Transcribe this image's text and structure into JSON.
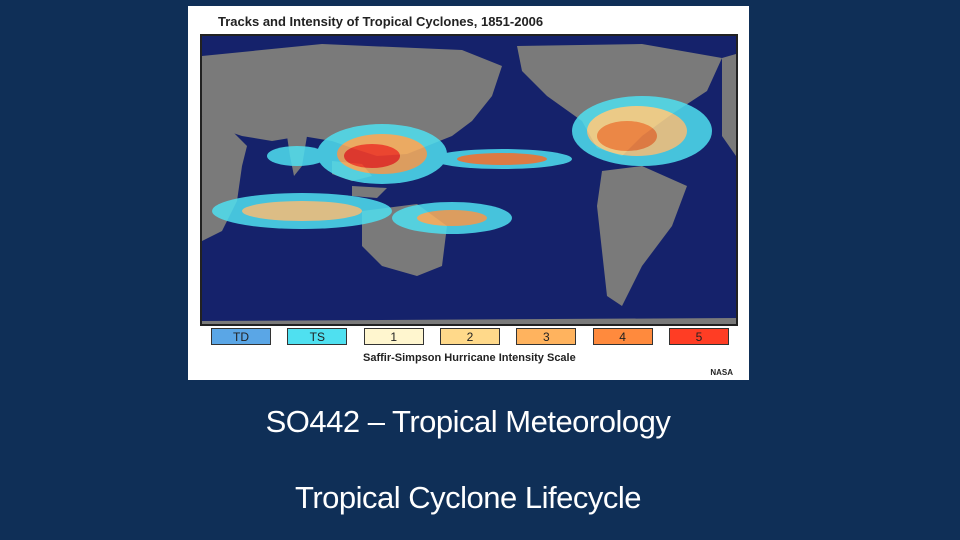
{
  "figure": {
    "title": "Tracks and Intensity of Tropical Cyclones, 1851-2006",
    "scale_label": "Saffir-Simpson Hurricane Intensity Scale",
    "credit": "NASA",
    "categories": [
      {
        "label": "TD",
        "color": "#5aa6e6"
      },
      {
        "label": "TS",
        "color": "#4fe0f0"
      },
      {
        "label": "1",
        "color": "#fff6cf"
      },
      {
        "label": "2",
        "color": "#ffd98a"
      },
      {
        "label": "3",
        "color": "#ffb35e"
      },
      {
        "label": "4",
        "color": "#ff8a3d"
      },
      {
        "label": "5",
        "color": "#ff3d24"
      }
    ],
    "colors": {
      "ocean": "#15226b",
      "land": "#7a7a7a"
    }
  },
  "slide": {
    "title": "SO442 – Tropical Meteorology",
    "subtitle": "Tropical Cyclone Lifecycle"
  }
}
